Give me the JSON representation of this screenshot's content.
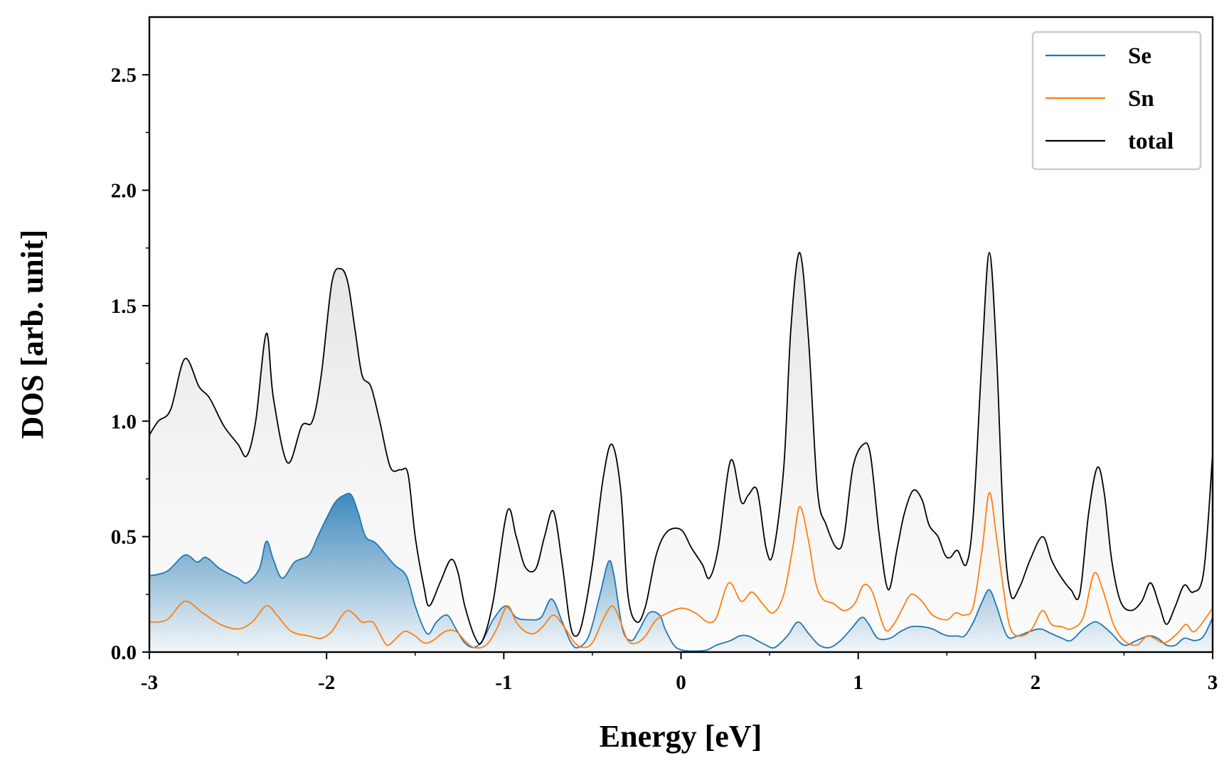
{
  "chart_data": {
    "type": "line",
    "xlabel": "Energy [eV]",
    "ylabel": "DOS [arb. unit]",
    "xlim": [
      -3,
      3
    ],
    "ylim": [
      0,
      2.75
    ],
    "xticks": [
      -3,
      -2,
      -1,
      0,
      1,
      2,
      3
    ],
    "xtick_labels": [
      "-3",
      "-2",
      "-1",
      "0",
      "1",
      "2",
      "3"
    ],
    "yticks": [
      0.0,
      0.5,
      1.0,
      1.5,
      2.0,
      2.5
    ],
    "ytick_labels": [
      "0.0",
      "0.5",
      "1.0",
      "1.5",
      "2.0",
      "2.5"
    ],
    "grid": false,
    "legend_position": "top-right",
    "fill_under": [
      "Se",
      "total"
    ],
    "series": [
      {
        "name": "Se",
        "color": "#1f77b4",
        "x": [
          -3.0,
          -2.9,
          -2.8,
          -2.73,
          -2.68,
          -2.6,
          -2.5,
          -2.45,
          -2.38,
          -2.34,
          -2.3,
          -2.25,
          -2.18,
          -2.1,
          -2.05,
          -2.0,
          -1.95,
          -1.9,
          -1.86,
          -1.82,
          -1.78,
          -1.72,
          -1.62,
          -1.55,
          -1.5,
          -1.45,
          -1.42,
          -1.38,
          -1.32,
          -1.27,
          -1.22,
          -1.17,
          -1.12,
          -1.06,
          -0.99,
          -0.93,
          -0.86,
          -0.79,
          -0.73,
          -0.67,
          -0.62,
          -0.58,
          -0.52,
          -0.46,
          -0.41,
          -0.38,
          -0.33,
          -0.28,
          -0.24,
          -0.18,
          -0.12,
          -0.09,
          -0.04,
          0.0,
          0.05,
          0.1,
          0.15,
          0.2,
          0.28,
          0.33,
          0.38,
          0.43,
          0.48,
          0.53,
          0.6,
          0.66,
          0.72,
          0.78,
          0.84,
          0.9,
          0.96,
          1.02,
          1.06,
          1.11,
          1.18,
          1.24,
          1.3,
          1.36,
          1.42,
          1.47,
          1.51,
          1.56,
          1.6,
          1.65,
          1.7,
          1.74,
          1.78,
          1.84,
          1.9,
          1.97,
          2.03,
          2.09,
          2.15,
          2.2,
          2.27,
          2.33,
          2.37,
          2.43,
          2.5,
          2.57,
          2.64,
          2.69,
          2.74,
          2.79,
          2.84,
          2.9,
          2.95,
          3.0
        ],
        "y": [
          0.33,
          0.35,
          0.42,
          0.39,
          0.41,
          0.36,
          0.32,
          0.3,
          0.36,
          0.48,
          0.4,
          0.32,
          0.39,
          0.42,
          0.5,
          0.58,
          0.65,
          0.68,
          0.68,
          0.6,
          0.5,
          0.47,
          0.38,
          0.33,
          0.2,
          0.1,
          0.08,
          0.13,
          0.16,
          0.1,
          0.04,
          0.02,
          0.05,
          0.14,
          0.2,
          0.15,
          0.14,
          0.15,
          0.23,
          0.13,
          0.04,
          0.02,
          0.07,
          0.24,
          0.39,
          0.34,
          0.1,
          0.05,
          0.09,
          0.17,
          0.16,
          0.1,
          0.03,
          0.01,
          0.005,
          0.005,
          0.01,
          0.03,
          0.05,
          0.07,
          0.07,
          0.05,
          0.03,
          0.02,
          0.07,
          0.13,
          0.08,
          0.03,
          0.02,
          0.05,
          0.1,
          0.15,
          0.12,
          0.06,
          0.06,
          0.09,
          0.11,
          0.11,
          0.1,
          0.08,
          0.07,
          0.07,
          0.07,
          0.13,
          0.22,
          0.27,
          0.2,
          0.07,
          0.07,
          0.09,
          0.1,
          0.08,
          0.06,
          0.05,
          0.1,
          0.13,
          0.12,
          0.08,
          0.03,
          0.05,
          0.07,
          0.06,
          0.03,
          0.03,
          0.06,
          0.05,
          0.07,
          0.15
        ]
      },
      {
        "name": "Sn",
        "color": "#ff7f0e",
        "x": [
          -3.0,
          -2.9,
          -2.8,
          -2.7,
          -2.6,
          -2.5,
          -2.42,
          -2.34,
          -2.28,
          -2.2,
          -2.1,
          -2.03,
          -1.97,
          -1.92,
          -1.88,
          -1.84,
          -1.8,
          -1.74,
          -1.7,
          -1.66,
          -1.62,
          -1.58,
          -1.55,
          -1.5,
          -1.45,
          -1.4,
          -1.33,
          -1.27,
          -1.22,
          -1.17,
          -1.1,
          -1.04,
          -0.98,
          -0.93,
          -0.88,
          -0.83,
          -0.78,
          -0.72,
          -0.66,
          -0.6,
          -0.55,
          -0.5,
          -0.44,
          -0.39,
          -0.35,
          -0.3,
          -0.25,
          -0.2,
          -0.15,
          -0.1,
          0.0,
          0.08,
          0.15,
          0.2,
          0.27,
          0.34,
          0.4,
          0.46,
          0.52,
          0.58,
          0.63,
          0.67,
          0.72,
          0.76,
          0.8,
          0.86,
          0.92,
          0.98,
          1.03,
          1.08,
          1.15,
          1.2,
          1.25,
          1.3,
          1.36,
          1.42,
          1.5,
          1.55,
          1.6,
          1.65,
          1.7,
          1.74,
          1.78,
          1.82,
          1.86,
          1.92,
          1.98,
          2.04,
          2.09,
          2.15,
          2.2,
          2.27,
          2.33,
          2.38,
          2.44,
          2.5,
          2.57,
          2.63,
          2.67,
          2.73,
          2.8,
          2.85,
          2.9,
          3.0
        ],
        "y": [
          0.13,
          0.14,
          0.22,
          0.17,
          0.12,
          0.1,
          0.13,
          0.2,
          0.16,
          0.09,
          0.07,
          0.06,
          0.09,
          0.15,
          0.18,
          0.16,
          0.13,
          0.13,
          0.08,
          0.03,
          0.05,
          0.08,
          0.09,
          0.07,
          0.04,
          0.05,
          0.09,
          0.09,
          0.05,
          0.02,
          0.03,
          0.1,
          0.2,
          0.13,
          0.09,
          0.08,
          0.11,
          0.16,
          0.11,
          0.04,
          0.02,
          0.04,
          0.14,
          0.2,
          0.15,
          0.05,
          0.04,
          0.07,
          0.13,
          0.16,
          0.19,
          0.17,
          0.13,
          0.15,
          0.3,
          0.22,
          0.26,
          0.21,
          0.17,
          0.25,
          0.45,
          0.63,
          0.48,
          0.3,
          0.23,
          0.21,
          0.18,
          0.21,
          0.29,
          0.26,
          0.1,
          0.12,
          0.19,
          0.25,
          0.22,
          0.16,
          0.14,
          0.17,
          0.16,
          0.2,
          0.45,
          0.69,
          0.5,
          0.27,
          0.1,
          0.07,
          0.1,
          0.18,
          0.12,
          0.11,
          0.1,
          0.15,
          0.34,
          0.27,
          0.12,
          0.05,
          0.03,
          0.07,
          0.06,
          0.04,
          0.08,
          0.12,
          0.09,
          0.19
        ]
      },
      {
        "name": "total",
        "color": "#000000",
        "x": [
          -3.0,
          -2.95,
          -2.88,
          -2.8,
          -2.72,
          -2.66,
          -2.58,
          -2.5,
          -2.45,
          -2.4,
          -2.34,
          -2.3,
          -2.22,
          -2.14,
          -2.08,
          -2.03,
          -1.97,
          -1.92,
          -1.88,
          -1.84,
          -1.8,
          -1.75,
          -1.7,
          -1.64,
          -1.58,
          -1.54,
          -1.5,
          -1.45,
          -1.42,
          -1.36,
          -1.3,
          -1.26,
          -1.22,
          -1.16,
          -1.12,
          -1.06,
          -0.98,
          -0.93,
          -0.88,
          -0.82,
          -0.77,
          -0.72,
          -0.67,
          -0.63,
          -0.6,
          -0.56,
          -0.5,
          -0.44,
          -0.39,
          -0.34,
          -0.3,
          -0.25,
          -0.2,
          -0.14,
          -0.08,
          0.0,
          0.06,
          0.12,
          0.16,
          0.21,
          0.28,
          0.34,
          0.38,
          0.43,
          0.48,
          0.52,
          0.58,
          0.62,
          0.67,
          0.72,
          0.77,
          0.82,
          0.88,
          0.92,
          0.97,
          1.03,
          1.07,
          1.12,
          1.17,
          1.22,
          1.26,
          1.31,
          1.36,
          1.4,
          1.45,
          1.49,
          1.52,
          1.56,
          1.61,
          1.65,
          1.7,
          1.74,
          1.78,
          1.82,
          1.86,
          1.91,
          1.97,
          2.04,
          2.09,
          2.14,
          2.2,
          2.25,
          2.3,
          2.35,
          2.39,
          2.43,
          2.48,
          2.54,
          2.6,
          2.65,
          2.7,
          2.74,
          2.79,
          2.84,
          2.89,
          2.95,
          3.0
        ],
        "y": [
          0.94,
          1.0,
          1.05,
          1.27,
          1.15,
          1.1,
          0.98,
          0.9,
          0.85,
          1.0,
          1.38,
          1.1,
          0.82,
          0.98,
          1.0,
          1.2,
          1.6,
          1.66,
          1.6,
          1.4,
          1.2,
          1.15,
          1.0,
          0.8,
          0.79,
          0.77,
          0.5,
          0.28,
          0.2,
          0.3,
          0.4,
          0.35,
          0.2,
          0.06,
          0.05,
          0.22,
          0.61,
          0.5,
          0.37,
          0.36,
          0.5,
          0.61,
          0.38,
          0.14,
          0.07,
          0.12,
          0.38,
          0.75,
          0.9,
          0.7,
          0.25,
          0.13,
          0.2,
          0.42,
          0.52,
          0.53,
          0.45,
          0.38,
          0.32,
          0.45,
          0.83,
          0.65,
          0.68,
          0.7,
          0.45,
          0.43,
          0.8,
          1.4,
          1.73,
          1.35,
          0.7,
          0.55,
          0.45,
          0.5,
          0.8,
          0.9,
          0.85,
          0.5,
          0.27,
          0.45,
          0.6,
          0.7,
          0.66,
          0.55,
          0.5,
          0.42,
          0.41,
          0.44,
          0.38,
          0.6,
          1.3,
          1.73,
          1.3,
          0.55,
          0.25,
          0.28,
          0.4,
          0.5,
          0.4,
          0.33,
          0.27,
          0.25,
          0.6,
          0.8,
          0.68,
          0.4,
          0.22,
          0.18,
          0.22,
          0.3,
          0.2,
          0.12,
          0.2,
          0.29,
          0.26,
          0.35,
          0.86
        ]
      }
    ]
  }
}
